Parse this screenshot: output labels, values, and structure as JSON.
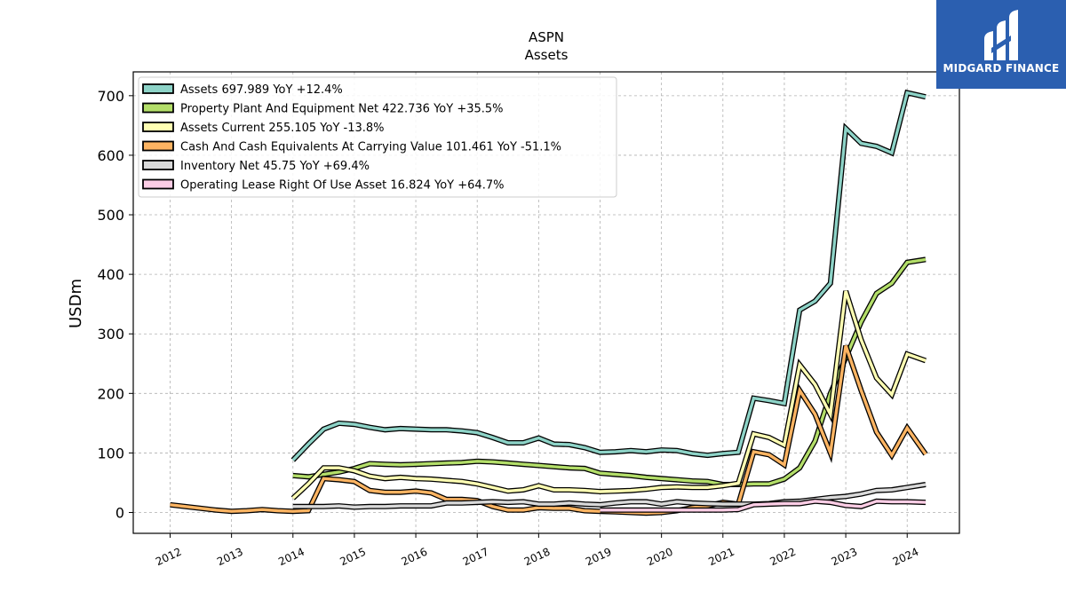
{
  "logo": {
    "name": "MIDGARD FINANCE",
    "color": "#2b5fb0"
  },
  "chart_data": {
    "type": "line",
    "title": "ASPN",
    "subtitle": "Assets",
    "xlabel": "",
    "ylabel": "USDm",
    "ylim": [
      -35,
      740
    ],
    "xlim": [
      2011.4,
      2024.85
    ],
    "yticks": [
      0,
      100,
      200,
      300,
      400,
      500,
      600,
      700
    ],
    "xticks": [
      "2012",
      "2013",
      "2014",
      "2015",
      "2016",
      "2017",
      "2018",
      "2019",
      "2020",
      "2021",
      "2022",
      "2023",
      "2024"
    ],
    "grid": true,
    "legend_position": "top-left",
    "series": [
      {
        "name": "Assets",
        "legend": "Assets  697.989 YoY +12.4%",
        "color": "#8dd3c7",
        "x": [
          2014.0,
          2014.25,
          2014.5,
          2014.75,
          2015.0,
          2015.25,
          2015.5,
          2015.75,
          2016.0,
          2016.25,
          2016.5,
          2016.75,
          2017.0,
          2017.25,
          2017.5,
          2017.75,
          2018.0,
          2018.25,
          2018.5,
          2018.75,
          2019.0,
          2019.25,
          2019.5,
          2019.75,
          2020.0,
          2020.25,
          2020.5,
          2020.75,
          2021.0,
          2021.25,
          2021.5,
          2021.75,
          2022.0,
          2022.25,
          2022.5,
          2022.75,
          2023.0,
          2023.25,
          2023.5,
          2023.75,
          2024.0,
          2024.3
        ],
        "y": [
          88,
          115,
          140,
          150,
          148,
          143,
          139,
          141,
          140,
          139,
          139,
          137,
          134,
          126,
          117,
          117,
          125,
          115,
          114,
          109,
          101,
          102,
          104,
          102,
          105,
          104,
          99,
          96,
          99,
          101,
          192,
          188,
          183,
          340,
          355,
          385,
          645,
          620,
          615,
          604,
          705,
          698
        ]
      },
      {
        "name": "Property Plant And Equipment Net",
        "legend": "Property Plant And Equipment Net  422.736 YoY +35.5%",
        "color": "#b3de69",
        "x": [
          2014.0,
          2014.25,
          2014.5,
          2014.75,
          2015.0,
          2015.25,
          2015.5,
          2015.75,
          2016.0,
          2016.25,
          2016.5,
          2016.75,
          2017.0,
          2017.25,
          2017.5,
          2017.75,
          2018.0,
          2018.25,
          2018.5,
          2018.75,
          2019.0,
          2019.25,
          2019.5,
          2019.75,
          2020.0,
          2020.25,
          2020.5,
          2020.75,
          2021.0,
          2021.25,
          2021.5,
          2021.75,
          2022.0,
          2022.25,
          2022.5,
          2022.75,
          2023.0,
          2023.25,
          2023.5,
          2023.75,
          2024.0,
          2024.3
        ],
        "y": [
          62,
          60,
          64,
          68,
          74,
          82,
          81,
          80,
          81,
          82,
          83,
          84,
          86,
          85,
          83,
          81,
          79,
          77,
          75,
          74,
          66,
          64,
          62,
          59,
          57,
          55,
          53,
          52,
          47,
          47,
          48,
          48,
          56,
          75,
          120,
          200,
          260,
          320,
          368,
          385,
          420,
          425
        ]
      },
      {
        "name": "Assets Current",
        "legend": "Assets Current  255.105 YoY -13.8%",
        "color": "#ffffb3",
        "x": [
          2014.0,
          2014.25,
          2014.5,
          2014.75,
          2015.0,
          2015.25,
          2015.5,
          2015.75,
          2016.0,
          2016.25,
          2016.5,
          2016.75,
          2017.0,
          2017.25,
          2017.5,
          2017.75,
          2018.0,
          2018.25,
          2018.5,
          2018.75,
          2019.0,
          2019.25,
          2019.5,
          2019.75,
          2020.0,
          2020.25,
          2020.5,
          2020.75,
          2021.0,
          2021.25,
          2021.5,
          2021.75,
          2022.0,
          2022.25,
          2022.5,
          2022.75,
          2023.0,
          2023.25,
          2023.5,
          2023.75,
          2024.0,
          2024.3
        ],
        "y": [
          24,
          48,
          75,
          75,
          70,
          61,
          57,
          59,
          57,
          56,
          54,
          52,
          48,
          42,
          36,
          38,
          45,
          38,
          38,
          37,
          35,
          36,
          37,
          39,
          42,
          43,
          42,
          42,
          45,
          49,
          132,
          126,
          113,
          248,
          215,
          165,
          372,
          290,
          226,
          198,
          266,
          255
        ]
      },
      {
        "name": "Cash And Cash Equivalents At Carrying Value",
        "legend": "Cash And Cash Equivalents At Carrying Value  101.461 YoY -51.1%",
        "color": "#fdb462",
        "x": [
          2012.0,
          2012.25,
          2012.5,
          2012.75,
          2013.0,
          2013.25,
          2013.5,
          2013.75,
          2014.0,
          2014.25,
          2014.5,
          2014.75,
          2015.0,
          2015.25,
          2015.5,
          2015.75,
          2016.0,
          2016.25,
          2016.5,
          2016.75,
          2017.0,
          2017.25,
          2017.5,
          2017.75,
          2018.0,
          2018.25,
          2018.5,
          2018.75,
          2019.0,
          2019.25,
          2019.5,
          2019.75,
          2020.0,
          2020.25,
          2020.5,
          2020.75,
          2021.0,
          2021.25,
          2021.5,
          2021.75,
          2022.0,
          2022.25,
          2022.5,
          2022.75,
          2023.0,
          2023.25,
          2023.5,
          2023.75,
          2024.0,
          2024.3
        ],
        "y": [
          13,
          10,
          7,
          4,
          2,
          3,
          5,
          3,
          2,
          3,
          57,
          55,
          52,
          37,
          34,
          34,
          36,
          33,
          22,
          22,
          20,
          10,
          4,
          4,
          8,
          7,
          7,
          3,
          2,
          1,
          0,
          -1,
          0,
          3,
          8,
          11,
          17,
          14,
          102,
          97,
          80,
          205,
          165,
          100,
          280,
          205,
          135,
          96,
          142,
          98
        ]
      },
      {
        "name": "Inventory Net",
        "legend": "Inventory Net  45.75 YoY +69.4%",
        "color": "#d9d9d9",
        "x": [
          2014.0,
          2014.25,
          2014.5,
          2014.75,
          2015.0,
          2015.25,
          2015.5,
          2015.75,
          2016.0,
          2016.25,
          2016.5,
          2016.75,
          2017.0,
          2017.25,
          2017.5,
          2017.75,
          2018.0,
          2018.25,
          2018.5,
          2018.75,
          2019.0,
          2019.25,
          2019.5,
          2019.75,
          2020.0,
          2020.25,
          2020.5,
          2020.75,
          2021.0,
          2021.25,
          2021.5,
          2021.75,
          2022.0,
          2022.25,
          2022.5,
          2022.75,
          2023.0,
          2023.25,
          2023.5,
          2023.75,
          2024.0,
          2024.3
        ],
        "y": [
          10,
          10,
          10,
          11,
          9,
          10,
          10,
          11,
          11,
          11,
          16,
          16,
          17,
          18,
          17,
          18,
          14,
          14,
          16,
          14,
          13,
          16,
          18,
          18,
          14,
          18,
          16,
          15,
          14,
          14,
          14,
          15,
          18,
          19,
          22,
          25,
          27,
          31,
          37,
          38,
          42,
          47
        ]
      },
      {
        "name": "Operating Lease Right Of Use Asset",
        "legend": "Operating Lease Right Of Use Asset  16.824 YoY +64.7%",
        "color": "#fccde5",
        "x": [
          2019.0,
          2019.25,
          2019.5,
          2019.75,
          2020.0,
          2020.25,
          2020.5,
          2020.75,
          2021.0,
          2021.25,
          2021.5,
          2021.75,
          2022.0,
          2022.25,
          2022.5,
          2022.75,
          2023.0,
          2023.25,
          2023.5,
          2023.75,
          2024.0,
          2024.3
        ],
        "y": [
          4,
          4,
          4,
          4,
          4,
          4,
          4,
          4,
          4,
          5,
          13,
          14,
          15,
          15,
          19,
          17,
          12,
          10,
          19,
          18,
          18,
          17
        ]
      }
    ]
  }
}
